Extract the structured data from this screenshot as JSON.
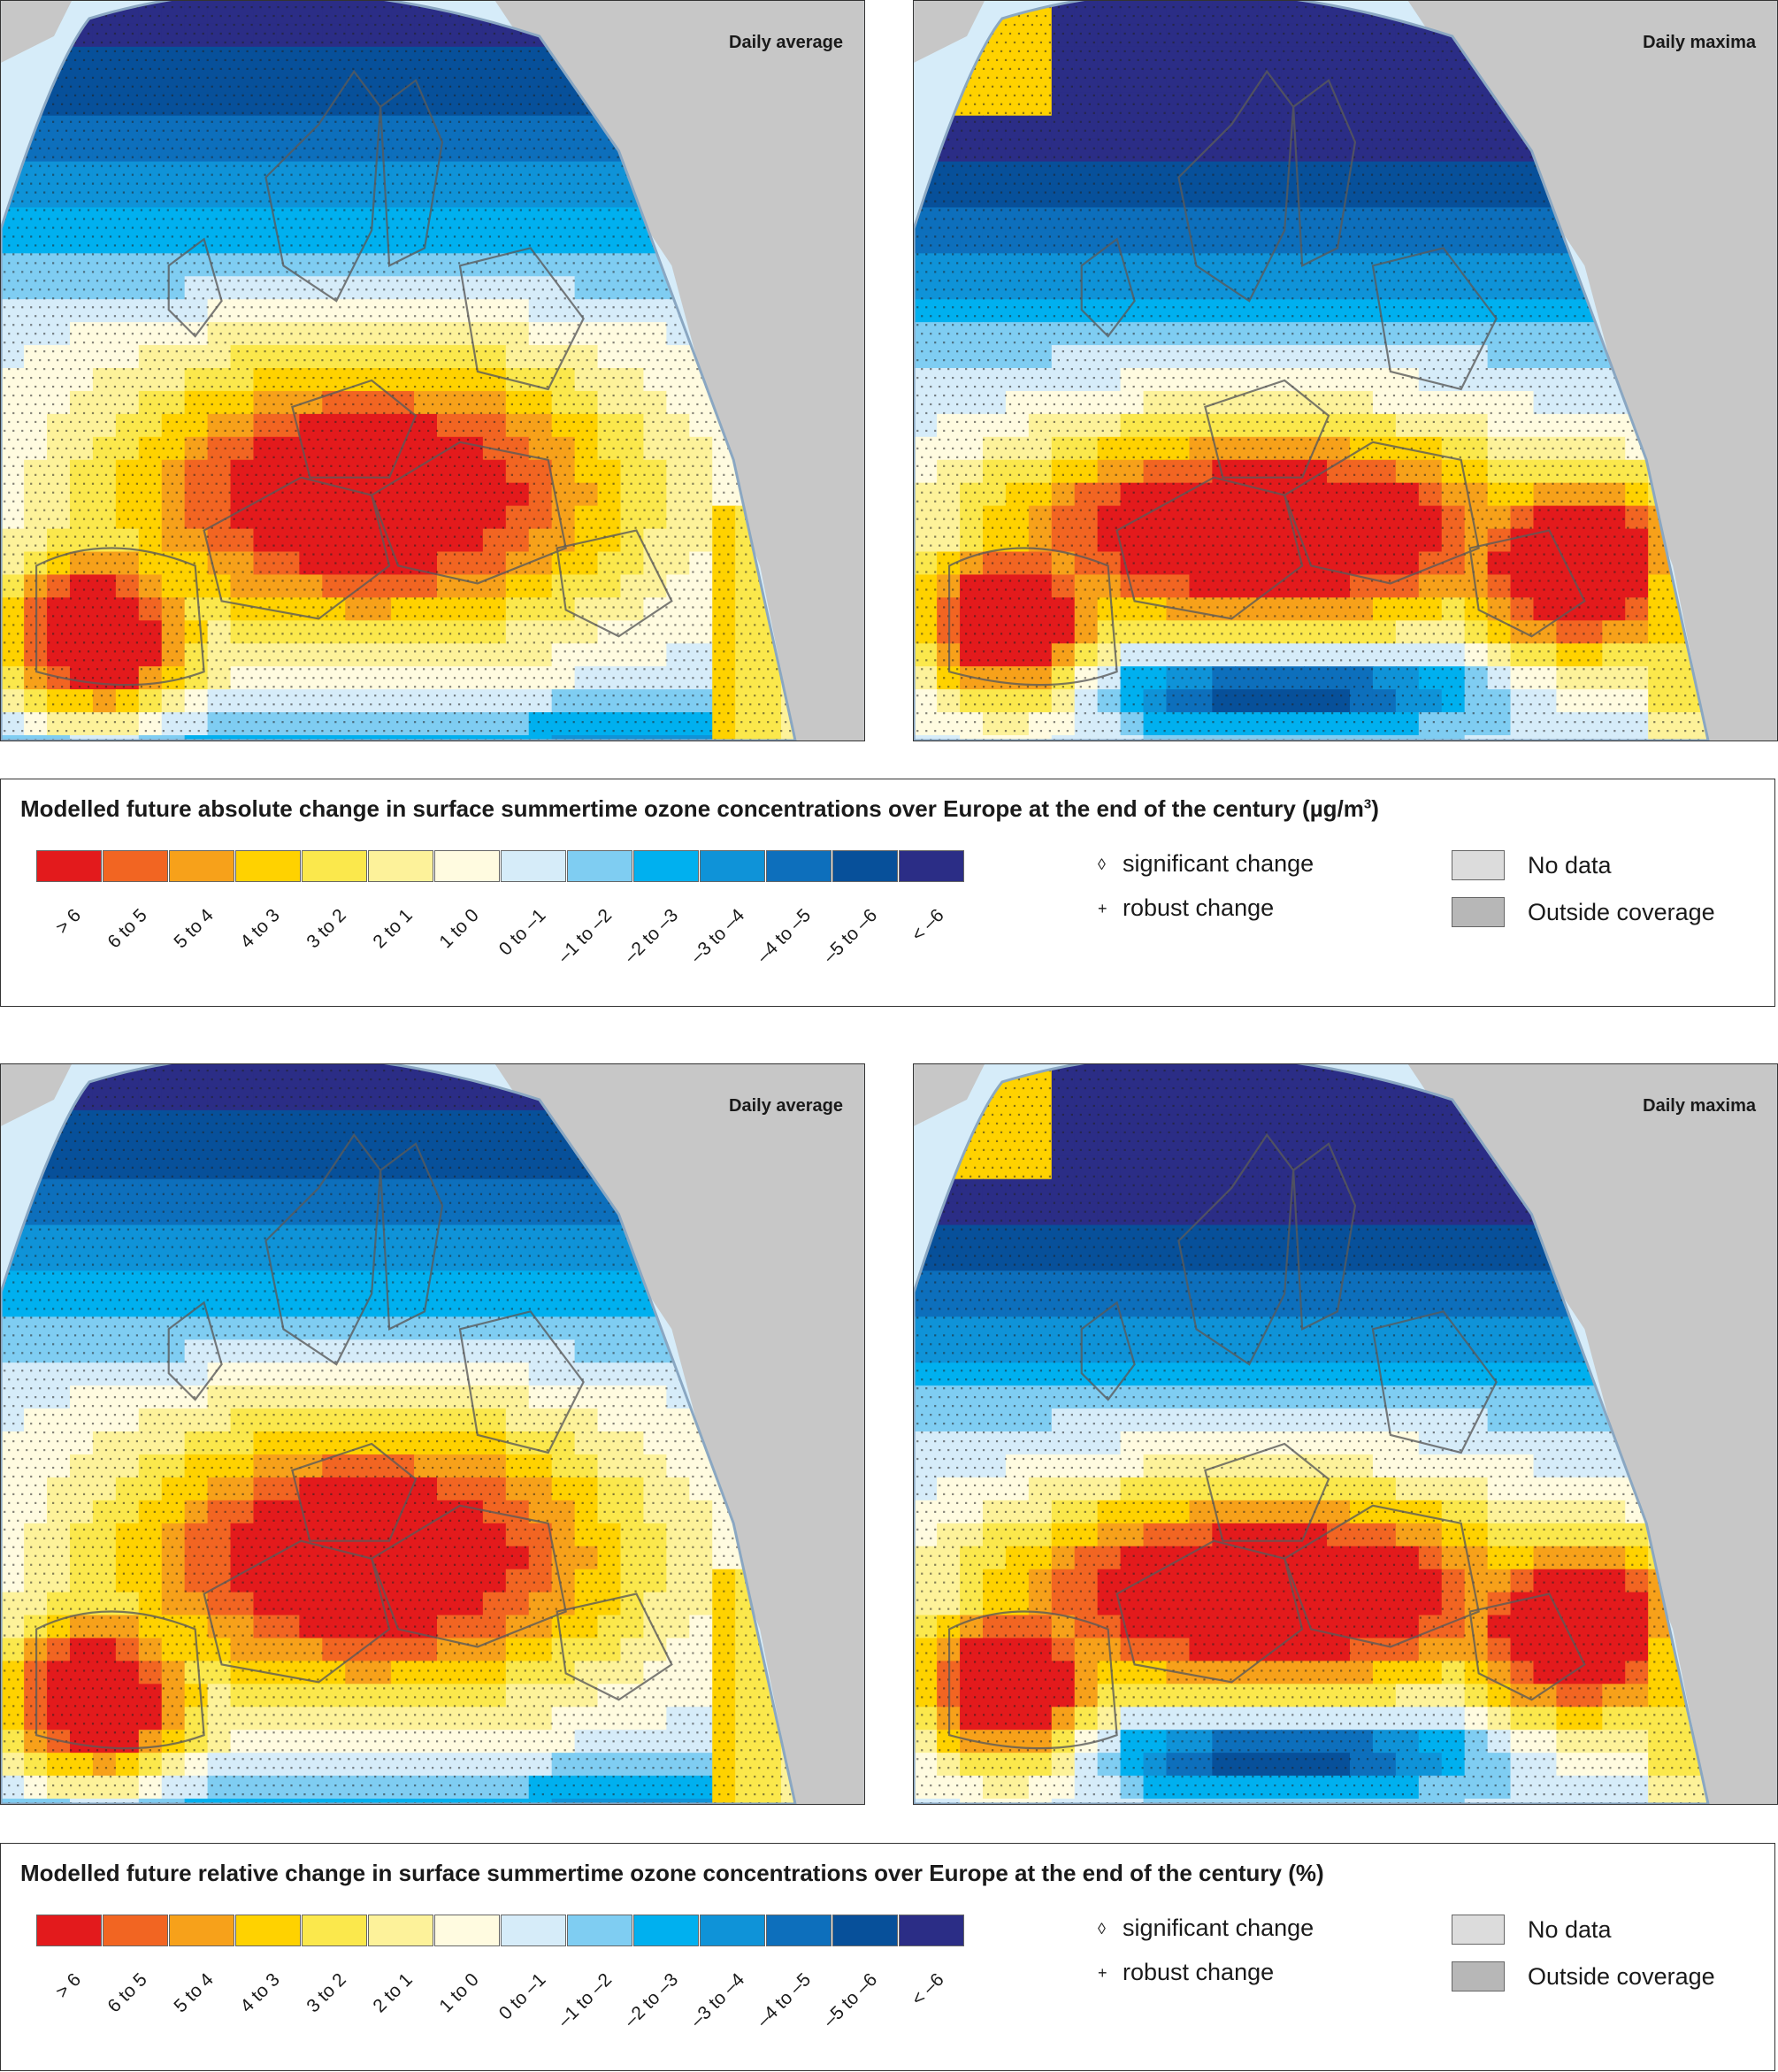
{
  "maps": [
    {
      "name": "abs-daily-average",
      "label": "Daily average",
      "pattern": "a"
    },
    {
      "name": "abs-daily-maxima",
      "label": "Daily maxima",
      "pattern": "b"
    },
    {
      "name": "rel-daily-average",
      "label": "Daily average",
      "pattern": "a"
    },
    {
      "name": "rel-daily-maxima",
      "label": "Daily maxima",
      "pattern": "b"
    }
  ],
  "legend_absolute": {
    "title": "Modelled future absolute change in surface summertime ozone concentrations over Europe at the end of the century (µg/m",
    "title_sup": "3",
    "title_end": ")"
  },
  "legend_relative": {
    "title": "Modelled future relative change in surface summertime ozone concentrations over Europe at the end of the century (%)"
  },
  "classes": [
    {
      "label": "> 6",
      "color": "#e31a1c"
    },
    {
      "label": "6 to 5",
      "color": "#f26522"
    },
    {
      "label": "5 to 4",
      "color": "#f7a11a"
    },
    {
      "label": "4 to 3",
      "color": "#ffd200"
    },
    {
      "label": "3 to 2",
      "color": "#fbe84c"
    },
    {
      "label": "2 to 1",
      "color": "#fdf29a"
    },
    {
      "label": "1 to 0",
      "color": "#fffbe0"
    },
    {
      "label": "0 to –1",
      "color": "#d6ecf9"
    },
    {
      "label": "–1 to –2",
      "color": "#7fcdf2"
    },
    {
      "label": "–2 to –3",
      "color": "#00b0ef"
    },
    {
      "label": "–3 to –4",
      "color": "#0f93d8"
    },
    {
      "label": "–4 to –5",
      "color": "#0d6fbc"
    },
    {
      "label": "–5 to –6",
      "color": "#07509a"
    },
    {
      "label": "< –6",
      "color": "#2b2d86"
    }
  ],
  "symbols": {
    "significant": {
      "glyph": "◊",
      "label": "significant change"
    },
    "robust": {
      "glyph": "+",
      "label": "robust change"
    }
  },
  "boxes": {
    "no_data": {
      "label": "No data",
      "color": "#dcdcdc"
    },
    "outside": {
      "label": "Outside coverage",
      "color": "#b7b7b7"
    }
  },
  "colors": {
    "land_outside": "#c7c7c7",
    "sea_outside": "#d6ecf9",
    "border": "#5a5a5a"
  }
}
